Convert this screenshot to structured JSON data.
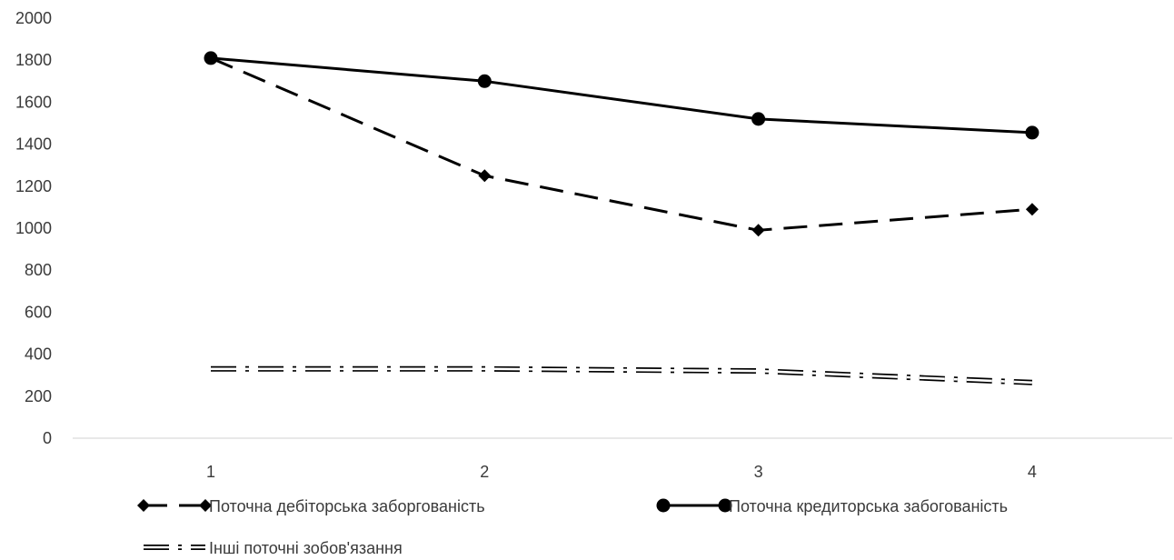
{
  "chart_data": {
    "type": "line",
    "title": "",
    "xlabel": "",
    "ylabel": "",
    "categories": [
      "1",
      "2",
      "3",
      "4"
    ],
    "ylim": [
      0,
      2000
    ],
    "yticks": [
      0,
      200,
      400,
      600,
      800,
      1000,
      1200,
      1400,
      1600,
      1800,
      2000
    ],
    "grid": false,
    "legend_position": "bottom",
    "series": [
      {
        "name": "Поточна дебіторська заборгованість",
        "values": [
          1810,
          1250,
          990,
          1090
        ],
        "style": "dashed",
        "marker": "diamond",
        "color": "#000000"
      },
      {
        "name": "Поточна кредиторська забогованість",
        "values": [
          1810,
          1700,
          1520,
          1455
        ],
        "style": "solid",
        "marker": "circle",
        "color": "#000000"
      },
      {
        "name": "Інші поточні зобов'язання",
        "values": [
          330,
          330,
          320,
          265
        ],
        "style": "dash-dot-double",
        "marker": "none",
        "color": "#000000"
      }
    ]
  }
}
